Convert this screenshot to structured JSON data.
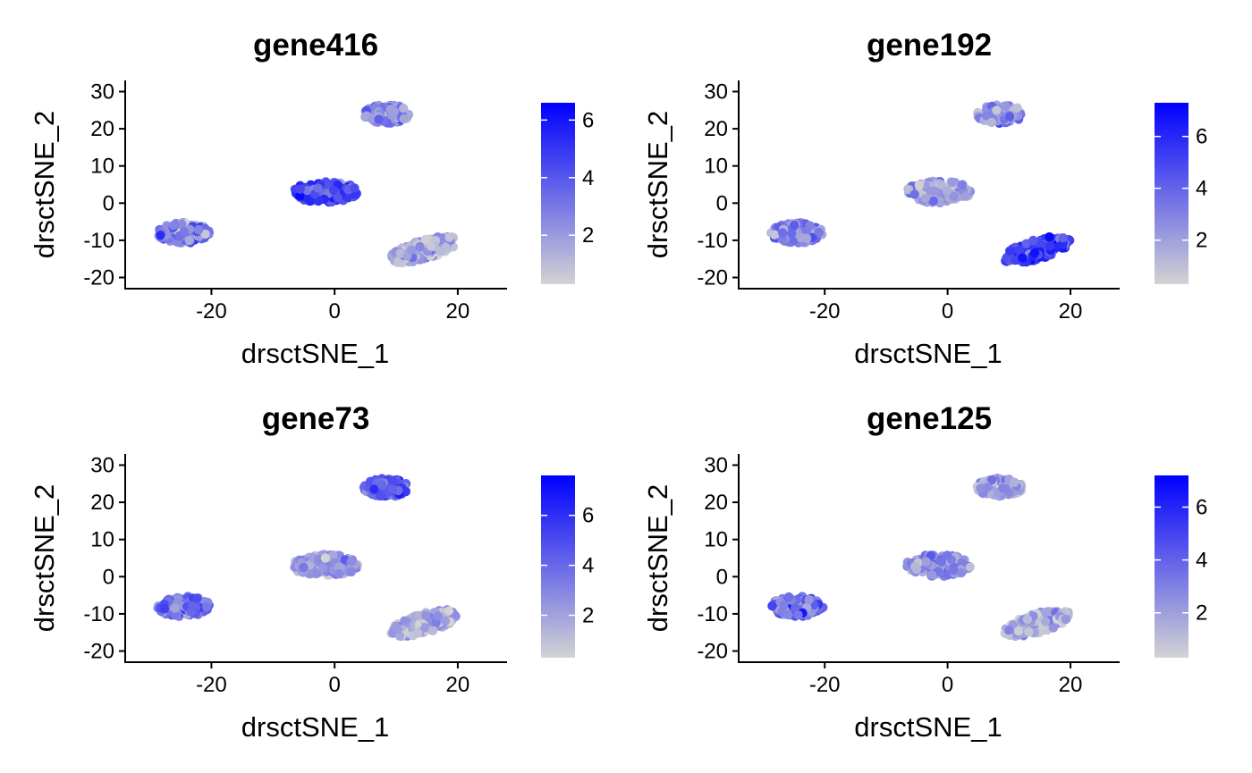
{
  "chart_data": [
    {
      "type": "scatter",
      "title": "gene416",
      "xlabel": "drsctSNE_1",
      "ylabel": "drsctSNE_2",
      "xlim": [
        -34,
        28
      ],
      "ylim": [
        -23,
        33
      ],
      "xticks": [
        -20,
        0,
        20
      ],
      "yticks": [
        -20,
        -10,
        0,
        10,
        20,
        30
      ],
      "grid": false,
      "colorbar": {
        "min": 0.3,
        "max": 6.6,
        "ticks": [
          2,
          4,
          6
        ],
        "low_color": "#d3d3d3",
        "high_color": "#0000ff"
      },
      "clusters": [
        {
          "name": "left",
          "center": [
            -24.5,
            -8
          ],
          "spread": [
            8.5,
            5.5
          ],
          "angle": 0,
          "n": 140,
          "mean": 2.6,
          "sd": 1.0
        },
        {
          "name": "center",
          "center": [
            -1.5,
            3
          ],
          "spread": [
            10.5,
            6
          ],
          "angle": 0,
          "n": 150,
          "mean": 4.3,
          "sd": 0.9
        },
        {
          "name": "top",
          "center": [
            8.5,
            24
          ],
          "spread": [
            7.5,
            5
          ],
          "angle": 0,
          "n": 120,
          "mean": 2.5,
          "sd": 1.0
        },
        {
          "name": "right",
          "center": [
            14.5,
            -12.5
          ],
          "spread": [
            12,
            5
          ],
          "angle": 28,
          "n": 170,
          "mean": 1.5,
          "sd": 0.9
        }
      ]
    },
    {
      "type": "scatter",
      "title": "gene192",
      "xlabel": "drsctSNE_1",
      "ylabel": "drsctSNE_2",
      "xlim": [
        -34,
        28
      ],
      "ylim": [
        -23,
        33
      ],
      "xticks": [
        -20,
        0,
        20
      ],
      "yticks": [
        -20,
        -10,
        0,
        10,
        20,
        30
      ],
      "grid": false,
      "colorbar": {
        "min": 0.3,
        "max": 7.3,
        "ticks": [
          2,
          4,
          6
        ],
        "low_color": "#d3d3d3",
        "high_color": "#0000ff"
      },
      "clusters": [
        {
          "name": "left",
          "center": [
            -24.5,
            -8
          ],
          "spread": [
            8.5,
            5.5
          ],
          "angle": 0,
          "n": 140,
          "mean": 2.6,
          "sd": 1.0
        },
        {
          "name": "center",
          "center": [
            -1.5,
            3
          ],
          "spread": [
            10.5,
            6
          ],
          "angle": 0,
          "n": 150,
          "mean": 1.9,
          "sd": 0.9
        },
        {
          "name": "top",
          "center": [
            8.5,
            24
          ],
          "spread": [
            7.5,
            5
          ],
          "angle": 0,
          "n": 120,
          "mean": 2.2,
          "sd": 1.0
        },
        {
          "name": "right",
          "center": [
            14.5,
            -12.5
          ],
          "spread": [
            12,
            5
          ],
          "angle": 28,
          "n": 170,
          "mean": 5.2,
          "sd": 0.9
        }
      ]
    },
    {
      "type": "scatter",
      "title": "gene73",
      "xlabel": "drsctSNE_1",
      "ylabel": "drsctSNE_2",
      "xlim": [
        -34,
        28
      ],
      "ylim": [
        -23,
        33
      ],
      "xticks": [
        -20,
        0,
        20
      ],
      "yticks": [
        -20,
        -10,
        0,
        10,
        20,
        30
      ],
      "grid": false,
      "colorbar": {
        "min": 0.3,
        "max": 7.6,
        "ticks": [
          2,
          4,
          6
        ],
        "low_color": "#d3d3d3",
        "high_color": "#0000ff"
      },
      "clusters": [
        {
          "name": "left",
          "center": [
            -24.5,
            -8
          ],
          "spread": [
            8.5,
            5.5
          ],
          "angle": 0,
          "n": 140,
          "mean": 3.6,
          "sd": 1.0
        },
        {
          "name": "center",
          "center": [
            -1.5,
            3
          ],
          "spread": [
            10.5,
            6
          ],
          "angle": 0,
          "n": 150,
          "mean": 2.3,
          "sd": 0.9
        },
        {
          "name": "top",
          "center": [
            8.5,
            24
          ],
          "spread": [
            7.5,
            5
          ],
          "angle": 0,
          "n": 120,
          "mean": 4.4,
          "sd": 1.0
        },
        {
          "name": "right",
          "center": [
            14.5,
            -12.5
          ],
          "spread": [
            12,
            5
          ],
          "angle": 28,
          "n": 170,
          "mean": 1.8,
          "sd": 0.9
        }
      ]
    },
    {
      "type": "scatter",
      "title": "gene125",
      "xlabel": "drsctSNE_1",
      "ylabel": "drsctSNE_2",
      "xlim": [
        -34,
        28
      ],
      "ylim": [
        -23,
        33
      ],
      "xticks": [
        -20,
        0,
        20
      ],
      "yticks": [
        -20,
        -10,
        0,
        10,
        20,
        30
      ],
      "grid": false,
      "colorbar": {
        "min": 0.3,
        "max": 7.2,
        "ticks": [
          2,
          4,
          6
        ],
        "low_color": "#d3d3d3",
        "high_color": "#0000ff"
      },
      "clusters": [
        {
          "name": "left",
          "center": [
            -24.5,
            -8
          ],
          "spread": [
            8.5,
            5.5
          ],
          "angle": 0,
          "n": 140,
          "mean": 3.3,
          "sd": 1.3
        },
        {
          "name": "center",
          "center": [
            -1.5,
            3
          ],
          "spread": [
            10.5,
            6
          ],
          "angle": 0,
          "n": 150,
          "mean": 2.8,
          "sd": 0.9
        },
        {
          "name": "top",
          "center": [
            8.5,
            24
          ],
          "spread": [
            7.5,
            5
          ],
          "angle": 0,
          "n": 120,
          "mean": 2.0,
          "sd": 1.0
        },
        {
          "name": "right",
          "center": [
            14.5,
            -12.5
          ],
          "spread": [
            12,
            5
          ],
          "angle": 28,
          "n": 170,
          "mean": 1.6,
          "sd": 0.9
        }
      ]
    }
  ]
}
